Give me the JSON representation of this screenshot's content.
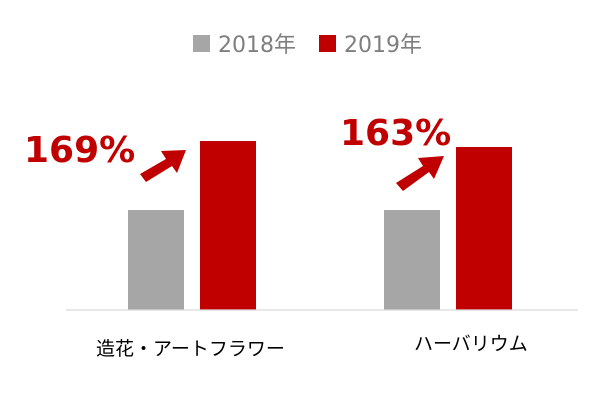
{
  "chart_data": {
    "type": "bar",
    "categories": [
      "造花・アートフラワー",
      "ハーバリウム"
    ],
    "series": [
      {
        "name": "2018年",
        "values": [
          100,
          100
        ],
        "color": "#a6a6a6"
      },
      {
        "name": "2019年",
        "values": [
          169,
          163
        ],
        "color": "#c00000"
      }
    ],
    "annotations": [
      "169%",
      "163%"
    ],
    "annotation_color": "#c00000",
    "ylim": [
      0,
      180
    ],
    "grid": false,
    "legend": "top-center",
    "title": "",
    "xlabel": "",
    "ylabel": ""
  }
}
